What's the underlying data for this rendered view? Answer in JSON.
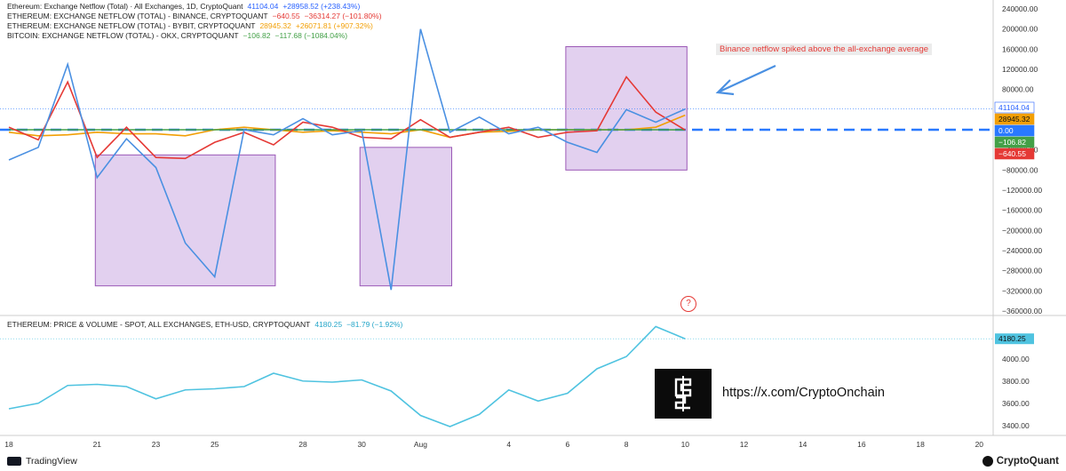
{
  "legends": {
    "main": [
      {
        "name": "Ethereum: Exchange Netflow (Total) · All Exchanges, 1D, CryptoQuant",
        "value": "41104.04",
        "change": "+28958.52 (+238.43%)",
        "color": "#2962ff"
      },
      {
        "name": "ETHEREUM: EXCHANGE NETFLOW (TOTAL) - BINANCE, CRYPTOQUANT",
        "value": "−640.55",
        "change": "−36314.27 (−101.80%)",
        "color": "#e53935"
      },
      {
        "name": "ETHEREUM: EXCHANGE NETFLOW (TOTAL) - BYBIT, CRYPTOQUANT",
        "value": "28945.32",
        "change": "+26071.81 (+907.32%)",
        "color": "#f29f05"
      },
      {
        "name": "BITCOIN: EXCHANGE NETFLOW (TOTAL) - OKX, CRYPTOQUANT",
        "value": "−106.82",
        "change": "−117.68 (−1084.04%)",
        "color": "#43a047"
      }
    ],
    "price": {
      "name": "ETHEREUM: PRICE & VOLUME - SPOT, ALL EXCHANGES, ETH-USD, CRYPTOQUANT",
      "value": "4180.25",
      "change": "−81.79 (−1.92%)",
      "color": "#26a6c9"
    }
  },
  "annotation": "Binance netflow spiked above the all-exchange average",
  "watermark_url": "https://x.com/CryptoOnchain",
  "footer": {
    "left": "TradingView",
    "right": "CryptoQuant"
  },
  "price_tags": {
    "blue": "41104.04",
    "orange": "28945.32",
    "zero": "0.00",
    "green": "−106.82",
    "red": "−640.55",
    "price": "4180.25"
  },
  "chart_data": [
    {
      "type": "line",
      "x": [
        "Jul 18",
        "Jul 19",
        "Jul 20",
        "Jul 21",
        "Jul 22",
        "Jul 23",
        "Jul 24",
        "Jul 25",
        "Jul 26",
        "Jul 27",
        "Jul 28",
        "Jul 29",
        "Jul 30",
        "Jul 31",
        "Aug 1",
        "Aug 2",
        "Aug 3",
        "Aug 4",
        "Aug 5",
        "Aug 6",
        "Aug 7",
        "Aug 8",
        "Aug 9",
        "Aug 10"
      ],
      "x_ticks": [
        "18",
        "21",
        "23",
        "25",
        "28",
        "30",
        "Aug",
        "4",
        "6",
        "8",
        "10",
        "12",
        "14",
        "16",
        "18",
        "20"
      ],
      "series": [
        {
          "name": "Ethereum: Exchange Netflow (Total) · All Exchanges",
          "color": "#4a90e2",
          "values": [
            -60000,
            -35000,
            130000,
            -95000,
            -18000,
            -75000,
            -225000,
            -292000,
            0,
            -10000,
            22000,
            -10000,
            -2000,
            -318000,
            200000,
            -5000,
            25000,
            -8000,
            5000,
            -25000,
            -45000,
            40000,
            15000,
            41104
          ]
        },
        {
          "name": "Binance",
          "color": "#e53935",
          "values": [
            5000,
            -20000,
            95000,
            -55000,
            5000,
            -55000,
            -57000,
            -25000,
            -5000,
            -30000,
            15000,
            5000,
            -15000,
            -18000,
            20000,
            -15000,
            -5000,
            5000,
            -15000,
            -5000,
            -2000,
            105000,
            35000,
            -640
          ]
        },
        {
          "name": "Bybit",
          "color": "#f29f05",
          "values": [
            -5000,
            -12000,
            -10000,
            -5000,
            -8000,
            -8000,
            -12000,
            0,
            5000,
            0,
            -5000,
            -2000,
            -5000,
            -8000,
            0,
            -15000,
            -5000,
            -3000,
            0,
            0,
            0,
            0,
            5000,
            28945
          ]
        },
        {
          "name": "OKX",
          "color": "#43a047",
          "values": [
            0,
            0,
            0,
            0,
            0,
            0,
            0,
            0,
            0,
            0,
            0,
            0,
            0,
            0,
            0,
            0,
            0,
            0,
            0,
            0,
            0,
            0,
            0,
            -107
          ]
        }
      ],
      "ylim": [
        -360000,
        240000
      ],
      "y_ticks": [
        240000,
        200000,
        160000,
        120000,
        80000,
        40000,
        0,
        -40000,
        -80000,
        -120000,
        -160000,
        -200000,
        -240000,
        -280000,
        -320000,
        -360000
      ],
      "y_tick_labels": [
        "240000.00",
        "200000.00",
        "160000.00",
        "120000.00",
        "80000.00",
        "40000.00",
        "0.00",
        "−40000.00",
        "−80000.00",
        "−120000.00",
        "−160000.00",
        "−200000.00",
        "−240000.00",
        "−280000.00",
        "−320000.00",
        "−360000.00"
      ],
      "highlight_boxes": [
        {
          "x_range": [
            "Jul 21",
            "Jul 27"
          ],
          "y_range": [
            -50000,
            -310000
          ]
        },
        {
          "x_range": [
            "Jul 30",
            "Aug 2"
          ],
          "y_range": [
            -35000,
            -310000
          ]
        },
        {
          "x_range": [
            "Aug 6",
            "Aug 10"
          ],
          "y_range": [
            165000,
            -80000
          ]
        }
      ]
    },
    {
      "type": "line",
      "x": [
        "Jul 18",
        "Jul 19",
        "Jul 20",
        "Jul 21",
        "Jul 22",
        "Jul 23",
        "Jul 24",
        "Jul 25",
        "Jul 26",
        "Jul 27",
        "Jul 28",
        "Jul 29",
        "Jul 30",
        "Jul 31",
        "Aug 1",
        "Aug 2",
        "Aug 3",
        "Aug 4",
        "Aug 5",
        "Aug 6",
        "Aug 7",
        "Aug 8",
        "Aug 9",
        "Aug 10"
      ],
      "series": [
        {
          "name": "ETH-USD Price",
          "color": "#4fc3e0",
          "values": [
            3550,
            3600,
            3760,
            3770,
            3750,
            3640,
            3720,
            3730,
            3750,
            3870,
            3800,
            3790,
            3810,
            3710,
            3490,
            3390,
            3500,
            3720,
            3620,
            3690,
            3910,
            4020,
            4290,
            4180.25
          ]
        }
      ],
      "ylim": [
        3350,
        4350
      ],
      "y_ticks": [
        4000,
        3800,
        3600,
        3400
      ],
      "y_tick_labels": [
        "4000.00",
        "3800.00",
        "3600.00",
        "3400.00"
      ]
    }
  ]
}
